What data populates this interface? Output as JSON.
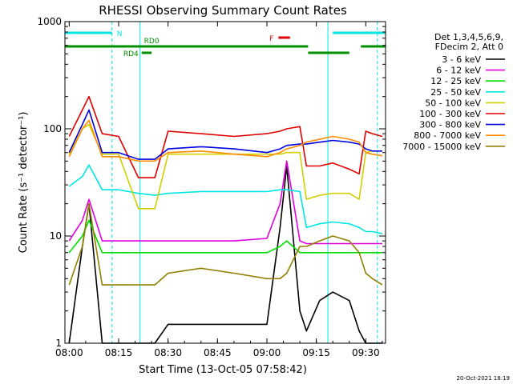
{
  "chart_data": {
    "type": "line",
    "title": "RHESSI Observing Summary Count Rates",
    "xlabel": "Start Time (13-Oct-05 07:58:42)",
    "ylabel": "Count Rate (s⁻¹ detector⁻¹)",
    "yscale": "log",
    "ylim": [
      1,
      1000
    ],
    "xlim": [
      "07:58:42",
      "09:36:00"
    ],
    "x_ticks": [
      "08:00",
      "08:15",
      "08:30",
      "08:45",
      "09:00",
      "09:15",
      "09:30"
    ],
    "y_ticks": [
      "1",
      "10",
      "100",
      "1000"
    ],
    "legend_header": [
      "Det 1,3,4,5,6,9,",
      "FDecim 2, Att 0"
    ],
    "legend_position": "right",
    "timestamp": "20-Oct-2021 18:19",
    "flags": {
      "N": {
        "label": "N",
        "color": "#00e5e5",
        "segments": [
          [
            "07:58:42",
            "08:13:00"
          ],
          [
            "09:20:00",
            "09:36:00"
          ]
        ]
      },
      "F": {
        "label": "F",
        "color": "#e00000",
        "segments": [
          [
            "09:03:30",
            "09:07:00"
          ]
        ]
      },
      "RD0": {
        "label": "RD0",
        "color": "#009000",
        "segments": [
          [
            "07:58:42",
            "09:12:30"
          ],
          [
            "09:28:30",
            "09:36:00"
          ]
        ]
      },
      "RD4": {
        "label": "RD4",
        "color": "#009000",
        "segments": [
          [
            "08:22:00",
            "08:25:00"
          ],
          [
            "09:12:30",
            "09:25:00"
          ]
        ]
      }
    },
    "night_boundaries": [
      {
        "time": "07:58:42",
        "style": "solid"
      },
      {
        "time": "08:13:00",
        "style": "dashed"
      },
      {
        "time": "08:21:30",
        "style": "solid"
      },
      {
        "time": "09:18:30",
        "style": "solid"
      },
      {
        "time": "09:33:30",
        "style": "dashed"
      }
    ],
    "x": [
      "08:00",
      "08:04",
      "08:06",
      "08:10",
      "08:15",
      "08:21",
      "08:26",
      "08:30",
      "08:40",
      "08:50",
      "09:00",
      "09:04",
      "09:06",
      "09:10",
      "09:12",
      "09:16",
      "09:20",
      "09:25",
      "09:28",
      "09:30",
      "09:32",
      "09:35"
    ],
    "series": [
      {
        "name": "3 - 6 keV",
        "color": "#000000",
        "values": [
          1,
          8,
          20,
          1,
          1,
          1,
          1,
          1.5,
          1.5,
          1.5,
          1.5,
          12,
          45,
          2,
          1.3,
          2.5,
          3,
          2.5,
          1.3,
          1,
          1,
          1
        ]
      },
      {
        "name": "6 - 12 keV",
        "color": "#e000e0",
        "values": [
          9,
          14,
          22,
          9,
          9,
          9,
          9,
          9,
          9,
          9,
          9.5,
          20,
          50,
          9,
          8.5,
          8.5,
          8.5,
          8.5,
          8.5,
          8.5,
          8.5,
          8.5
        ]
      },
      {
        "name": "12 - 25 keV",
        "color": "#00e000",
        "values": [
          7,
          10,
          14,
          7,
          7,
          7,
          7,
          7,
          7,
          7,
          7,
          8,
          9,
          7,
          7,
          7,
          7,
          7,
          7,
          7,
          7,
          7
        ]
      },
      {
        "name": "25 - 50 keV",
        "color": "#00e5e5",
        "values": [
          29,
          36,
          46,
          27,
          27,
          25,
          24,
          25,
          26,
          26,
          26,
          27,
          27,
          26,
          12,
          13,
          13.5,
          13,
          12,
          11,
          11,
          10.5
        ]
      },
      {
        "name": "50 - 100 keV",
        "color": "#d0d000",
        "values": [
          58,
          100,
          110,
          58,
          58,
          18,
          18,
          58,
          58,
          58,
          58,
          58,
          60,
          60,
          22,
          24,
          25,
          25,
          22,
          60,
          62,
          62
        ]
      },
      {
        "name": "100 - 300 keV",
        "color": "#e00000",
        "values": [
          85,
          150,
          200,
          90,
          85,
          35,
          35,
          95,
          90,
          85,
          90,
          95,
          100,
          105,
          45,
          45,
          48,
          42,
          38,
          95,
          90,
          85
        ]
      },
      {
        "name": "300 - 800 keV",
        "color": "#0000e0",
        "values": [
          60,
          110,
          150,
          60,
          60,
          52,
          52,
          65,
          68,
          65,
          60,
          65,
          70,
          72,
          72,
          75,
          78,
          75,
          72,
          65,
          62,
          62
        ]
      },
      {
        "name": "800 - 7000 keV",
        "color": "#ff8c00",
        "values": [
          55,
          100,
          120,
          55,
          55,
          50,
          50,
          60,
          62,
          58,
          55,
          60,
          65,
          70,
          75,
          80,
          85,
          80,
          75,
          60,
          58,
          56
        ]
      },
      {
        "name": "7000 - 15000 keV",
        "color": "#908000",
        "values": [
          3.5,
          8,
          20,
          3.5,
          3.5,
          3.5,
          3.5,
          4.5,
          5,
          4.5,
          4,
          4,
          4.5,
          8,
          8,
          9,
          10,
          9,
          7,
          4.5,
          4,
          3.5
        ]
      }
    ]
  }
}
